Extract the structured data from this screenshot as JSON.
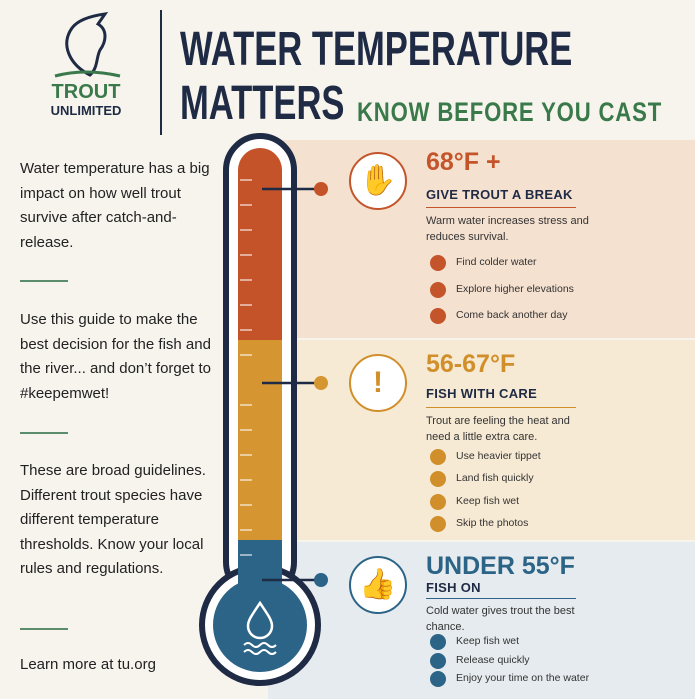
{
  "logo": {
    "line1": "TROUT",
    "line2": "UNLIMITED"
  },
  "header": {
    "title_line1": "WATER TEMPERATURE",
    "title_line2": "MATTERS",
    "subtitle": "KNOW BEFORE YOU CAST"
  },
  "intro": {
    "paragraphs": [
      "Water temperature has a big impact on how well trout survive after catch-and-release.",
      "Use this guide to make the best decision for the fish and the river... and don’t forget to #keepemwet!",
      "These are broad guidelines. Different trout species have different temperature thresholds. Know your local rules and regulations."
    ],
    "footer": "Learn more at tu.org"
  },
  "zones": [
    {
      "heading": "68°F +",
      "subheading": "GIVE TROUT A BREAK",
      "description": "Warm water increases stress and reduces survival.",
      "items": [
        "Find colder water",
        "Explore higher elevations",
        "Come back another day"
      ]
    },
    {
      "heading": "56-67°F",
      "subheading": "FISH WITH CARE",
      "description": "Trout are feeling the heat and need a little extra care.",
      "items": [
        "Use heavier tippet",
        "Land fish quickly",
        "Keep fish wet",
        "Skip the photos"
      ]
    },
    {
      "heading": "UNDER 55°F",
      "subheading": "FISH ON",
      "description": "Cold water gives trout the best chance.",
      "items": [
        "Keep fish wet",
        "Release quickly",
        "Enjoy your time on the water"
      ]
    }
  ]
}
